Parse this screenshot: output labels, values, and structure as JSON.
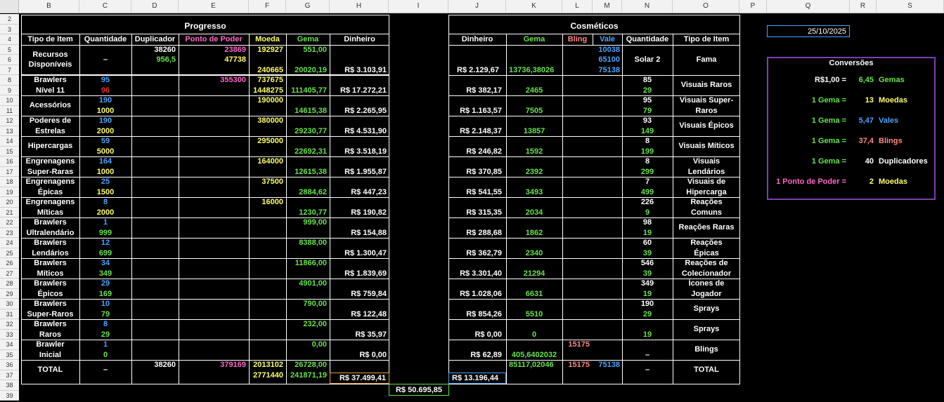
{
  "column_headers": [
    "B",
    "C",
    "D",
    "E",
    "F",
    "G",
    "H",
    "I",
    "J",
    "K",
    "L",
    "M",
    "N",
    "O",
    "P",
    "Q",
    "R",
    "S"
  ],
  "row_headers": [
    "2",
    "3",
    "4",
    "5",
    "6",
    "7",
    "8",
    "9",
    "10",
    "11",
    "12",
    "13",
    "14",
    "15",
    "16",
    "17",
    "18",
    "19",
    "20",
    "21",
    "22",
    "23",
    "24",
    "25",
    "26",
    "27",
    "28",
    "29",
    "30",
    "31",
    "32",
    "33",
    "34",
    "35",
    "36",
    "37",
    "38",
    "39"
  ],
  "progress": {
    "title": "Progresso",
    "headers": {
      "tipo": "Tipo de Item",
      "quantidade": "Quantidade",
      "duplicador": "Duplicador",
      "ponto": "Ponto de Poder",
      "moeda": "Moeda",
      "gema": "Gema",
      "dinheiro": "Dinheiro"
    },
    "resources": {
      "label1": "Recursos",
      "label2": "Disponíveis",
      "quantidade": "–",
      "dup1": "38260",
      "dup2": "956,5",
      "pp1": "23869",
      "moeda1": "192927",
      "moeda2": "47738",
      "moeda3": "240665",
      "gema1": "551,00",
      "gema3": "20020,19",
      "dinheiro": "R$ 3.103,91"
    },
    "rows": [
      {
        "l1": "Brawlers",
        "l2": "Nível  11",
        "q1": "95",
        "q2": "96",
        "pp": "355300",
        "m1": "737675",
        "m2": "1448275",
        "g": "111405,77",
        "d": "R$ 17.272,21"
      },
      {
        "l1": "Acessórios",
        "l2": "",
        "q1": "190",
        "q2": "1000",
        "pp": "",
        "m1": "190000",
        "m2": "",
        "g": "14615,38",
        "d": "R$ 2.265,95"
      },
      {
        "l1": "Poderes de",
        "l2": "Estrelas",
        "q1": "190",
        "q2": "2000",
        "pp": "",
        "m1": "380000",
        "m2": "",
        "g": "29230,77",
        "d": "R$ 4.531,90"
      },
      {
        "l1": "Hipercargas",
        "l2": "",
        "q1": "59",
        "q2": "5000",
        "pp": "",
        "m1": "295000",
        "m2": "",
        "g": "22692,31",
        "d": "R$ 3.518,19"
      },
      {
        "l1": "Engrenagens",
        "l2": "Super-Raras",
        "q1": "164",
        "q2": "1000",
        "pp": "",
        "m1": "164000",
        "m2": "",
        "g": "12615,38",
        "d": "R$ 1.955,87"
      },
      {
        "l1": "Engrenagens",
        "l2": "Épicas",
        "q1": "25",
        "q2": "1500",
        "pp": "",
        "m1": "37500",
        "m2": "",
        "g": "2884,62",
        "d": "R$ 447,23"
      },
      {
        "l1": "Engrenagens",
        "l2": "Míticas",
        "q1": "8",
        "q2": "2000",
        "pp": "",
        "m1": "16000",
        "m2": "",
        "g": "1230,77",
        "d": "R$ 190,82"
      },
      {
        "l1": "Brawlers",
        "l2": "Ultralendário",
        "q1": "1",
        "q2": "999",
        "pp": "",
        "m1": "",
        "m2": "",
        "gtop": "999,00",
        "g": "",
        "d": "R$ 154,88"
      },
      {
        "l1": "Brawlers",
        "l2": "Lendários",
        "q1": "12",
        "q2": "699",
        "pp": "",
        "m1": "",
        "m2": "",
        "gtop": "8388,00",
        "g": "",
        "d": "R$ 1.300,47"
      },
      {
        "l1": "Brawlers",
        "l2": "Míticos",
        "q1": "34",
        "q2": "349",
        "pp": "",
        "m1": "",
        "m2": "",
        "gtop": "11866,00",
        "g": "",
        "d": "R$ 1.839,69"
      },
      {
        "l1": "Brawlers",
        "l2": "Épicos",
        "q1": "29",
        "q2": "169",
        "pp": "",
        "m1": "",
        "m2": "",
        "gtop": "4901,00",
        "g": "",
        "d": "R$ 759,84"
      },
      {
        "l1": "Brawlers",
        "l2": "Super-Raros",
        "q1": "10",
        "q2": "79",
        "pp": "",
        "m1": "",
        "m2": "",
        "gtop": "790,00",
        "g": "",
        "d": "R$ 122,48"
      },
      {
        "l1": "Brawlers",
        "l2": "Raros",
        "q1": "8",
        "q2": "29",
        "pp": "",
        "m1": "",
        "m2": "",
        "gtop": "232,00",
        "g": "",
        "d": "R$ 35,97"
      },
      {
        "l1": "Brawler",
        "l2": "Inicial",
        "q1": "1",
        "q2": "0",
        "pp": "",
        "m1": "",
        "m2": "",
        "gtop": "0,00",
        "g": "",
        "d": "R$ 0,00"
      }
    ],
    "total": {
      "label": "TOTAL",
      "quantidade": "–",
      "dup": "38260",
      "pp": "379169",
      "m1": "2013102",
      "m2": "2771440",
      "g1": "26728,00",
      "g2": "241871,19",
      "d": "R$ 37.499,41"
    }
  },
  "grand_total": "R$ 50.695,85",
  "cosmetics": {
    "title": "Cosméticos",
    "headers": {
      "dinheiro": "Dinheiro",
      "gema": "Gema",
      "bling": "Bling",
      "vale": "Vale",
      "quantidade": "Quantidade",
      "tipo": "Tipo de Item"
    },
    "resources": {
      "dinheiro": "R$ 2.129,67",
      "gema": "13736,38026",
      "vale1": "10038",
      "vale2": "65100",
      "vale3": "75138",
      "quantidade": "Solar 2",
      "tipo": "Fama"
    },
    "rows": [
      {
        "d": "R$ 382,17",
        "g": "2465",
        "b": "",
        "q1": "85",
        "q2": "29",
        "t1": "Visuais Raros",
        "t2": ""
      },
      {
        "d": "R$ 1.163,57",
        "g": "7505",
        "b": "",
        "q1": "95",
        "q2": "79",
        "t1": "Visuais Super-",
        "t2": "Raros"
      },
      {
        "d": "R$ 2.148,37",
        "g": "13857",
        "b": "",
        "q1": "93",
        "q2": "149",
        "t1": "Visuais Épicos",
        "t2": ""
      },
      {
        "d": "R$ 246,82",
        "g": "1592",
        "b": "",
        "q1": "8",
        "q2": "199",
        "t1": "Visuais Míticos",
        "t2": ""
      },
      {
        "d": "R$ 370,85",
        "g": "2392",
        "b": "",
        "q1": "8",
        "q2": "299",
        "t1": "Visuais",
        "t2": "Lendários"
      },
      {
        "d": "R$ 541,55",
        "g": "3493",
        "b": "",
        "q1": "7",
        "q2": "499",
        "t1": "Visuais de",
        "t2": "Hipercarga"
      },
      {
        "d": "R$ 315,35",
        "g": "2034",
        "b": "",
        "q1": "226",
        "q2": "9",
        "t1": "Reações",
        "t2": "Comuns"
      },
      {
        "d": "R$ 288,68",
        "g": "1862",
        "b": "",
        "q1": "98",
        "q2": "19",
        "t1": "Reações Raras",
        "t2": ""
      },
      {
        "d": "R$ 362,79",
        "g": "2340",
        "b": "",
        "q1": "60",
        "q2": "39",
        "t1": "Reações",
        "t2": "Épicas"
      },
      {
        "d": "R$ 3.301,40",
        "g": "21294",
        "b": "",
        "q1": "546",
        "q2": "39",
        "t1": "Reações de",
        "t2": "Colecionador"
      },
      {
        "d": "R$ 1.028,06",
        "g": "6631",
        "b": "",
        "q1": "349",
        "q2": "19",
        "t1": "Ícones de",
        "t2": "Jogador"
      },
      {
        "d": "R$ 854,26",
        "g": "5510",
        "b": "",
        "q1": "190",
        "q2": "29",
        "t1": "Sprays",
        "t2": ""
      },
      {
        "d": "R$ 0,00",
        "g": "0",
        "b": "",
        "q1": "",
        "q2": "19",
        "t1": "Sprays",
        "t2": ""
      },
      {
        "d": "R$ 62,89",
        "g": "405,6402032",
        "btop": "15175",
        "q1": "",
        "q2": "–",
        "t1": "Blings",
        "t2": ""
      }
    ],
    "total": {
      "d": "R$ 13.196,44",
      "g": "85117,02046",
      "b": "15175",
      "v": "75138",
      "q": "–",
      "label": "TOTAL"
    }
  },
  "date": "25/10/2025",
  "conversions": {
    "title": "Conversões",
    "items": [
      {
        "left": "R$1,00 =",
        "value": "6,45",
        "unit": "Gemas",
        "left_color": "#ffffff",
        "value_color": "#66e34a",
        "unit_color": "#66e34a"
      },
      {
        "left": "1 Gema =",
        "value": "13",
        "unit": "Moedas",
        "left_color": "#66e34a",
        "value_color": "#ffff66",
        "unit_color": "#ffff66"
      },
      {
        "left": "1 Gema =",
        "value": "5,47",
        "unit": "Vales",
        "left_color": "#66e34a",
        "value_color": "#4aa3ff",
        "unit_color": "#4aa3ff"
      },
      {
        "left": "1 Gema =",
        "value": "37,4",
        "unit": "Blings",
        "left_color": "#66e34a",
        "value_color": "#ff8a80",
        "unit_color": "#ff8a80"
      },
      {
        "left": "1 Gema =",
        "value": "40",
        "unit": "Duplicadores",
        "left_color": "#66e34a",
        "value_color": "#ffffff",
        "unit_color": "#ffffff"
      },
      {
        "left": "1 Ponto de Poder =",
        "value": "2",
        "unit": "Moedas",
        "left_color": "#ff66cc",
        "value_color": "#ffff66",
        "unit_color": "#ffff66"
      }
    ]
  }
}
